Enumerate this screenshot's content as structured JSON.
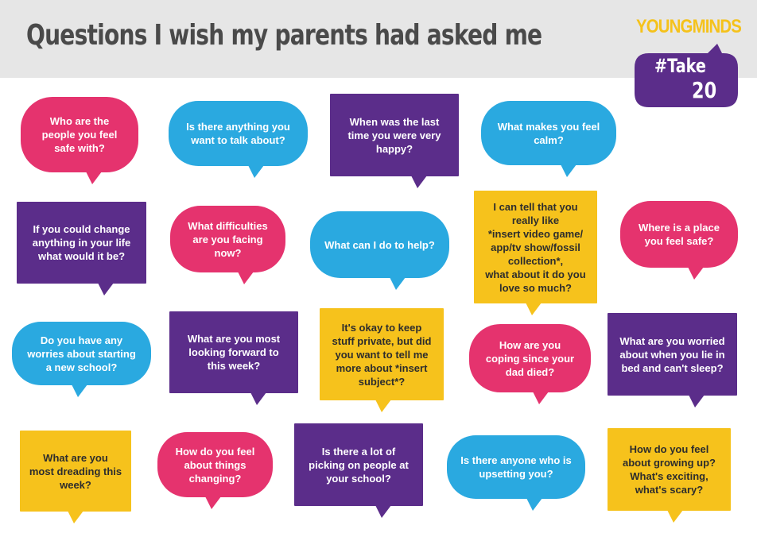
{
  "title": "Questions I wish my parents had asked me",
  "logo": {
    "part1": "YOUNG",
    "part2": "MINDS"
  },
  "badge": {
    "hash_take": "#Take",
    "number": "20"
  },
  "colors": {
    "pink": "#e5336e",
    "blue": "#2aa9e0",
    "purple": "#5b2d8a",
    "yellow": "#f6c21c",
    "title": "#4a4a4a",
    "header_bg": "#e6e6e6"
  },
  "questions": [
    {
      "text": "Who are the\npeople you feel\nsafe with?",
      "color": "pink"
    },
    {
      "text": "Is there anything you\nwant to talk about?",
      "color": "blue"
    },
    {
      "text": "When was the last\ntime you were very\nhappy?",
      "color": "purple"
    },
    {
      "text": "What makes you feel\ncalm?",
      "color": "blue"
    },
    {
      "text": "If you could change\nanything in your life\nwhat would it be?",
      "color": "purple"
    },
    {
      "text": "What difficulties\nare you facing\nnow?",
      "color": "pink"
    },
    {
      "text": "What can I do to help?",
      "color": "blue"
    },
    {
      "text": "I can tell that you\nreally like\n*insert video game/\napp/tv show/fossil\ncollection*,\nwhat about it do you\nlove so much?",
      "color": "yellow"
    },
    {
      "text": "Where is a place\nyou feel safe?",
      "color": "pink"
    },
    {
      "text": "Do you have any\nworries about starting\na new school?",
      "color": "blue"
    },
    {
      "text": "What are you most\nlooking forward to\nthis week?",
      "color": "purple"
    },
    {
      "text": "It's okay to keep\nstuff private, but did\nyou want to tell me\nmore about *insert\nsubject*?",
      "color": "yellow"
    },
    {
      "text": "How are you\ncoping since your\ndad died?",
      "color": "pink"
    },
    {
      "text": "What are you worried\nabout when you lie in\nbed and can't sleep?",
      "color": "purple"
    },
    {
      "text": "What are you\nmost dreading this\nweek?",
      "color": "yellow"
    },
    {
      "text": "How do you feel\nabout things\nchanging?",
      "color": "pink"
    },
    {
      "text": "Is there a lot of\npicking on people at\nyour school?",
      "color": "purple"
    },
    {
      "text": "Is there anyone who is\nupsetting you?",
      "color": "blue"
    },
    {
      "text": "How do you feel\nabout growing up?\nWhat's exciting,\nwhat's scary?",
      "color": "yellow"
    }
  ]
}
